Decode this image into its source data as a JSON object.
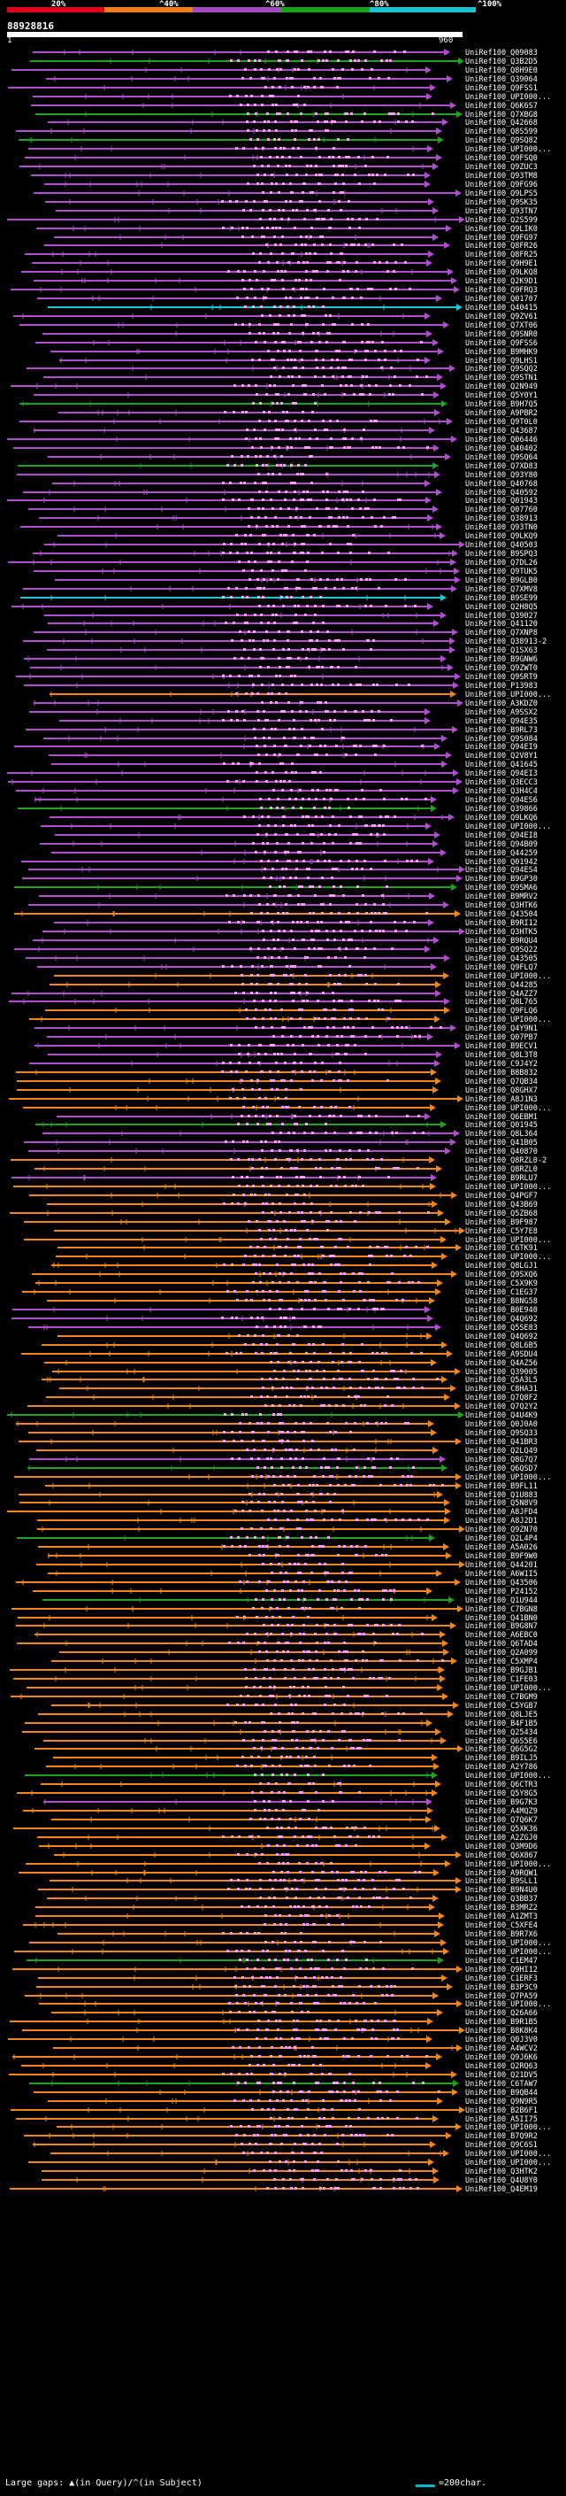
{
  "header": {
    "legend": [
      {
        "label": "20%",
        "color": "#e0001b"
      },
      {
        "label": "^40%",
        "color": "#ee7d1c"
      },
      {
        "label": "^60%",
        "color": "#a14cbe"
      },
      {
        "label": "^80%",
        "color": "#1aa31a"
      },
      {
        "label": "^100%",
        "color": "#1cc3cf"
      }
    ],
    "query_id": "88928816",
    "query_start": "1",
    "query_end": "960"
  },
  "colors": {
    "cyan": "#22c4d4",
    "green": "#1fa21f",
    "purple": "#b04ed0",
    "orange": "#f0861d",
    "pink": "#ff9cf8",
    "black": "#000000"
  },
  "hits": [
    {
      "label": "UniRef100_Q09083",
      "color": "purple"
    },
    {
      "label": "UniRef100_Q3B2D5",
      "color": "green"
    },
    {
      "label": "UniRef100_Q8H9E0",
      "color": "purple"
    },
    {
      "label": "UniRef100_Q39064",
      "color": "purple"
    },
    {
      "label": "UniRef100_Q9FSS1",
      "color": "purple"
    },
    {
      "label": "UniRef100_UPI000...",
      "color": "purple"
    },
    {
      "label": "UniRef100_Q6K6S7",
      "color": "purple"
    },
    {
      "label": "UniRef100_Q7XBG8",
      "color": "green"
    },
    {
      "label": "UniRef100_Q42668",
      "color": "purple"
    },
    {
      "label": "UniRef100_Q8S599",
      "color": "purple"
    },
    {
      "label": "UniRef100_Q9SQ82",
      "color": "green"
    },
    {
      "label": "UniRef100_UPI000...",
      "color": "purple"
    },
    {
      "label": "UniRef100_Q9FSQ0",
      "color": "purple"
    },
    {
      "label": "UniRef100_Q9ZUC3",
      "color": "purple"
    },
    {
      "label": "UniRef100_Q93TM8",
      "color": "purple"
    },
    {
      "label": "UniRef100_Q9FG96",
      "color": "purple"
    },
    {
      "label": "UniRef100_Q9LPS5",
      "color": "purple"
    },
    {
      "label": "UniRef100_Q9SK35",
      "color": "purple"
    },
    {
      "label": "UniRef100_Q93TN7",
      "color": "purple"
    },
    {
      "label": "UniRef100_Q2S599",
      "color": "purple"
    },
    {
      "label": "UniRef100_Q9LIK0",
      "color": "purple"
    },
    {
      "label": "UniRef100_Q9FG97",
      "color": "purple"
    },
    {
      "label": "UniRef100_Q8FR26",
      "color": "purple"
    },
    {
      "label": "UniRef100_Q8FR25",
      "color": "purple"
    },
    {
      "label": "UniRef100_Q9H9E1",
      "color": "purple"
    },
    {
      "label": "UniRef100_Q9LKQ8",
      "color": "purple"
    },
    {
      "label": "UniRef100_Q2K9D1",
      "color": "purple"
    },
    {
      "label": "UniRef100_Q9FRQ3",
      "color": "purple"
    },
    {
      "label": "UniRef100_Q01707",
      "color": "purple"
    },
    {
      "label": "UniRef100_Q40415",
      "color": "cyan"
    },
    {
      "label": "UniRef100_Q9ZV61",
      "color": "purple"
    },
    {
      "label": "UniRef100_Q7XT06",
      "color": "purple"
    },
    {
      "label": "UniRef100_Q9SNR0",
      "color": "purple"
    },
    {
      "label": "UniRef100_Q9FSS6",
      "color": "purple"
    },
    {
      "label": "UniRef100_B9MHK9",
      "color": "purple"
    },
    {
      "label": "UniRef100_Q9LHS1",
      "color": "purple"
    },
    {
      "label": "UniRef100_Q9SQQ2",
      "color": "purple"
    },
    {
      "label": "UniRef100_Q9STN1",
      "color": "purple"
    },
    {
      "label": "UniRef100_Q2N949",
      "color": "purple"
    },
    {
      "label": "UniRef100_Q5Y0Y1",
      "color": "purple"
    },
    {
      "label": "UniRef100_B9H7Q5",
      "color": "green"
    },
    {
      "label": "UniRef100_A9PBR2",
      "color": "purple"
    },
    {
      "label": "UniRef100_Q9T0L0",
      "color": "purple"
    },
    {
      "label": "UniRef100_Q43687",
      "color": "purple"
    },
    {
      "label": "UniRef100_Q06446",
      "color": "purple"
    },
    {
      "label": "UniRef100_Q40402",
      "color": "purple"
    },
    {
      "label": "UniRef100_Q9SQ64",
      "color": "purple"
    },
    {
      "label": "UniRef100_Q7XD83",
      "color": "green"
    },
    {
      "label": "UniRef100_Q93Y80",
      "color": "purple"
    },
    {
      "label": "UniRef100_Q40768",
      "color": "purple"
    },
    {
      "label": "UniRef100_Q40592",
      "color": "purple"
    },
    {
      "label": "UniRef100_Q01943",
      "color": "purple"
    },
    {
      "label": "UniRef100_Q07760",
      "color": "purple"
    },
    {
      "label": "UniRef100_Q38913",
      "color": "purple"
    },
    {
      "label": "UniRef100_Q93TN0",
      "color": "purple"
    },
    {
      "label": "UniRef100_Q9LKQ9",
      "color": "purple"
    },
    {
      "label": "UniRef100_Q40503",
      "color": "purple"
    },
    {
      "label": "UniRef100_B9SPQ3",
      "color": "purple"
    },
    {
      "label": "UniRef100_Q7DL26",
      "color": "purple"
    },
    {
      "label": "UniRef100_Q9TUK5",
      "color": "purple"
    },
    {
      "label": "UniRef100_B9GLB0",
      "color": "purple"
    },
    {
      "label": "UniRef100_Q7XMV8",
      "color": "purple"
    },
    {
      "label": "UniRef100_B9SE99",
      "color": "cyan"
    },
    {
      "label": "UniRef100_Q2H8Q5",
      "color": "purple"
    },
    {
      "label": "UniRef100_Q39027",
      "color": "purple"
    },
    {
      "label": "UniRef100_Q41120",
      "color": "purple"
    },
    {
      "label": "UniRef100_Q7XNP8",
      "color": "purple"
    },
    {
      "label": "UniRef100_Q38913-2",
      "color": "purple"
    },
    {
      "label": "UniRef100_Q1SX63",
      "color": "purple"
    },
    {
      "label": "UniRef100_B9GNW6",
      "color": "purple"
    },
    {
      "label": "UniRef100_Q9ZWT0",
      "color": "purple"
    },
    {
      "label": "UniRef100_Q9SRT9",
      "color": "purple"
    },
    {
      "label": "UniRef100_P13983",
      "color": "purple"
    },
    {
      "label": "UniRef100_UPI000...",
      "color": "orange"
    },
    {
      "label": "UniRef100_A3KDZ0",
      "color": "purple"
    },
    {
      "label": "UniRef100_A9SSX2",
      "color": "purple"
    },
    {
      "label": "UniRef100_Q94E35",
      "color": "purple"
    },
    {
      "label": "UniRef100_B9RL73",
      "color": "purple"
    },
    {
      "label": "UniRef100_Q9S084",
      "color": "purple"
    },
    {
      "label": "UniRef100_Q94EI9",
      "color": "purple"
    },
    {
      "label": "UniRef100_Q2V8Y1",
      "color": "purple"
    },
    {
      "label": "UniRef100_Q41645",
      "color": "purple"
    },
    {
      "label": "UniRef100_Q94EI3",
      "color": "purple"
    },
    {
      "label": "UniRef100_Q3ECC3",
      "color": "purple"
    },
    {
      "label": "UniRef100_Q3H4C4",
      "color": "purple"
    },
    {
      "label": "UniRef100_Q94ES6",
      "color": "purple"
    },
    {
      "label": "UniRef100_Q39866",
      "color": "green"
    },
    {
      "label": "UniRef100_Q9LKQ6",
      "color": "purple"
    },
    {
      "label": "UniRef100_UPI000...",
      "color": "purple"
    },
    {
      "label": "UniRef100_Q94EI8",
      "color": "purple"
    },
    {
      "label": "UniRef100_Q94B09",
      "color": "purple"
    },
    {
      "label": "UniRef100_Q44259",
      "color": "purple"
    },
    {
      "label": "UniRef100_Q01942",
      "color": "purple"
    },
    {
      "label": "UniRef100_Q94ES4",
      "color": "purple"
    },
    {
      "label": "UniRef100_B9GP30",
      "color": "purple"
    },
    {
      "label": "UniRef100_Q9SMA6",
      "color": "green"
    },
    {
      "label": "UniRef100_B9MRV2",
      "color": "purple"
    },
    {
      "label": "UniRef100_Q3HTK6",
      "color": "purple"
    },
    {
      "label": "UniRef100_Q43504",
      "color": "orange"
    },
    {
      "label": "UniRef100_B9RI12",
      "color": "purple"
    },
    {
      "label": "UniRef100_Q3HTK5",
      "color": "purple"
    },
    {
      "label": "UniRef100_B9RQU4",
      "color": "purple"
    },
    {
      "label": "UniRef100_Q9SQ22",
      "color": "purple"
    },
    {
      "label": "UniRef100_Q43505",
      "color": "purple"
    },
    {
      "label": "UniRef100_Q9FLQ7",
      "color": "purple"
    },
    {
      "label": "UniRef100_UPI000...",
      "color": "orange"
    },
    {
      "label": "UniRef100_Q44285",
      "color": "orange"
    },
    {
      "label": "UniRef100_Q4AZZ7",
      "color": "purple"
    },
    {
      "label": "UniRef100_Q8L765",
      "color": "purple"
    },
    {
      "label": "UniRef100_Q9FLQ6",
      "color": "orange"
    },
    {
      "label": "UniRef100_UPI000...",
      "color": "orange"
    },
    {
      "label": "UniRef100_Q4Y9N1",
      "color": "purple"
    },
    {
      "label": "UniRef100_Q07PB7",
      "color": "purple"
    },
    {
      "label": "UniRef100_B9ECV1",
      "color": "purple"
    },
    {
      "label": "UniRef100_Q8L3T8",
      "color": "purple"
    },
    {
      "label": "UniRef100_C9J4Y2",
      "color": "purple"
    },
    {
      "label": "UniRef100_B8B832",
      "color": "orange"
    },
    {
      "label": "UniRef100_Q7QB34",
      "color": "orange"
    },
    {
      "label": "UniRef100_Q8GHX7",
      "color": "orange"
    },
    {
      "label": "UniRef100_A8J1N3",
      "color": "orange"
    },
    {
      "label": "UniRef100_UPI000...",
      "color": "orange"
    },
    {
      "label": "UniRef100_Q6EBM1",
      "color": "purple"
    },
    {
      "label": "UniRef100_Q01945",
      "color": "green"
    },
    {
      "label": "UniRef100_Q8L364",
      "color": "purple"
    },
    {
      "label": "UniRef100_Q41B05",
      "color": "purple"
    },
    {
      "label": "UniRef100_Q40870",
      "color": "purple"
    },
    {
      "label": "UniRef100_Q8RZL0-2",
      "color": "orange"
    },
    {
      "label": "UniRef100_Q8RZL0",
      "color": "orange"
    },
    {
      "label": "UniRef100_B9RLU7",
      "color": "purple"
    },
    {
      "label": "UniRef100_UPI000...",
      "color": "orange"
    },
    {
      "label": "UniRef100_Q4PGF7",
      "color": "orange"
    },
    {
      "label": "UniRef100_Q43B69",
      "color": "orange"
    },
    {
      "label": "UniRef100_Q5ZB68",
      "color": "orange"
    },
    {
      "label": "UniRef100_B9F987",
      "color": "orange"
    },
    {
      "label": "UniRef100_C5Y7E8",
      "color": "orange"
    },
    {
      "label": "UniRef100_UPI000...",
      "color": "orange"
    },
    {
      "label": "UniRef100_C6TK91",
      "color": "orange"
    },
    {
      "label": "UniRef100_UPI000...",
      "color": "orange"
    },
    {
      "label": "UniRef100_Q8LGJ1",
      "color": "orange"
    },
    {
      "label": "UniRef100_Q9SXQ6",
      "color": "orange"
    },
    {
      "label": "UniRef100_C5X9K9",
      "color": "orange"
    },
    {
      "label": "UniRef100_C1EG37",
      "color": "orange"
    },
    {
      "label": "UniRef100_B8NG58",
      "color": "orange"
    },
    {
      "label": "UniRef100_B0E940",
      "color": "purple"
    },
    {
      "label": "UniRef100_Q4Q692",
      "color": "purple"
    },
    {
      "label": "UniRef100_Q5SE83",
      "color": "purple"
    },
    {
      "label": "UniRef100_Q4Q692",
      "color": "orange"
    },
    {
      "label": "UniRef100_Q8L6B5",
      "color": "orange"
    },
    {
      "label": "UniRef100_A9SDU4",
      "color": "orange"
    },
    {
      "label": "UniRef100_Q4AZ56",
      "color": "orange"
    },
    {
      "label": "UniRef100_Q39005",
      "color": "orange"
    },
    {
      "label": "UniRef100_Q5A3L5",
      "color": "orange"
    },
    {
      "label": "UniRef100_C8HA31",
      "color": "orange"
    },
    {
      "label": "UniRef100_Q7Q8F2",
      "color": "orange"
    },
    {
      "label": "UniRef100_Q7Q2Y2",
      "color": "orange"
    },
    {
      "label": "UniRef100_Q4U4K9",
      "color": "green"
    },
    {
      "label": "UniRef100_Q0J0A0",
      "color": "orange"
    },
    {
      "label": "UniRef100_Q9SQ33",
      "color": "orange"
    },
    {
      "label": "UniRef100_Q41BR3",
      "color": "orange"
    },
    {
      "label": "UniRef100_Q2LQ49",
      "color": "orange"
    },
    {
      "label": "UniRef100_Q8G7Q7",
      "color": "purple"
    },
    {
      "label": "UniRef100_Q6QSD7",
      "color": "green"
    },
    {
      "label": "UniRef100_UPI000...",
      "color": "orange"
    },
    {
      "label": "UniRef100_B9FL11",
      "color": "orange"
    },
    {
      "label": "UniRef100_Q1U883",
      "color": "orange"
    },
    {
      "label": "UniRef100_Q5N8V9",
      "color": "orange"
    },
    {
      "label": "UniRef100_A8JFD4",
      "color": "orange"
    },
    {
      "label": "UniRef100_A8J2D1",
      "color": "orange"
    },
    {
      "label": "UniRef100_Q9ZN70",
      "color": "orange"
    },
    {
      "label": "UniRef100_Q2L4P4",
      "color": "green"
    },
    {
      "label": "UniRef100_A5A026",
      "color": "orange"
    },
    {
      "label": "UniRef100_B9F9W0",
      "color": "orange"
    },
    {
      "label": "UniRef100_Q44201",
      "color": "orange"
    },
    {
      "label": "UniRef100_A6W1I5",
      "color": "orange"
    },
    {
      "label": "UniRef100_Q43506",
      "color": "orange"
    },
    {
      "label": "UniRef100_P24152",
      "color": "orange"
    },
    {
      "label": "UniRef100_Q1U944",
      "color": "green"
    },
    {
      "label": "UniRef100_C7BGN8",
      "color": "orange"
    },
    {
      "label": "UniRef100_Q41BN0",
      "color": "orange"
    },
    {
      "label": "UniRef100_B9G8N7",
      "color": "orange"
    },
    {
      "label": "UniRef100_A6EBC0",
      "color": "orange"
    },
    {
      "label": "UniRef100_Q6TAD4",
      "color": "orange"
    },
    {
      "label": "UniRef100_Q2A099",
      "color": "orange"
    },
    {
      "label": "UniRef100_C5XMP4",
      "color": "orange"
    },
    {
      "label": "UniRef100_B9GJB1",
      "color": "orange"
    },
    {
      "label": "UniRef100_C1FE03",
      "color": "orange"
    },
    {
      "label": "UniRef100_UPI000...",
      "color": "orange"
    },
    {
      "label": "UniRef100_C7BGM9",
      "color": "orange"
    },
    {
      "label": "UniRef100_C5YGB7",
      "color": "orange"
    },
    {
      "label": "UniRef100_Q8LJE5",
      "color": "orange"
    },
    {
      "label": "UniRef100_B4F1B5",
      "color": "orange"
    },
    {
      "label": "UniRef100_Q25434",
      "color": "orange"
    },
    {
      "label": "UniRef100_Q6S5E6",
      "color": "orange"
    },
    {
      "label": "UniRef100_Q6G5G2",
      "color": "orange"
    },
    {
      "label": "UniRef100_B9ILJ5",
      "color": "orange"
    },
    {
      "label": "UniRef100_A2Y786",
      "color": "orange"
    },
    {
      "label": "UniRef100_UPI000...",
      "color": "green"
    },
    {
      "label": "UniRef100_Q6CTR3",
      "color": "orange"
    },
    {
      "label": "UniRef100_Q5Y8G5",
      "color": "orange"
    },
    {
      "label": "UniRef100_B9G7K3",
      "color": "purple"
    },
    {
      "label": "UniRef100_A4MQZ9",
      "color": "orange"
    },
    {
      "label": "UniRef100_Q7Q6K7",
      "color": "orange"
    },
    {
      "label": "UniRef100_Q5XK36",
      "color": "orange"
    },
    {
      "label": "UniRef100_A2ZGJ0",
      "color": "orange"
    },
    {
      "label": "UniRef100_Q3M9D6",
      "color": "orange"
    },
    {
      "label": "UniRef100_Q6X867",
      "color": "orange"
    },
    {
      "label": "UniRef100_UPI000...",
      "color": "orange"
    },
    {
      "label": "UniRef100_A9RQW1",
      "color": "orange"
    },
    {
      "label": "UniRef100_B9SLL1",
      "color": "orange"
    },
    {
      "label": "UniRef100_B9N4U0",
      "color": "orange"
    },
    {
      "label": "UniRef100_Q3BB37",
      "color": "orange"
    },
    {
      "label": "UniRef100_B3MRZ2",
      "color": "orange"
    },
    {
      "label": "UniRef100_A1ZMT3",
      "color": "orange"
    },
    {
      "label": "UniRef100_C5XFE4",
      "color": "orange"
    },
    {
      "label": "UniRef100_B9R7X6",
      "color": "orange"
    },
    {
      "label": "UniRef100_UPI000...",
      "color": "orange"
    },
    {
      "label": "UniRef100_UPI000...",
      "color": "orange"
    },
    {
      "label": "UniRef100_C1EM47",
      "color": "green"
    },
    {
      "label": "UniRef100_Q9HI12",
      "color": "orange"
    },
    {
      "label": "UniRef100_C1ERF3",
      "color": "orange"
    },
    {
      "label": "UniRef100_B3P3C9",
      "color": "orange"
    },
    {
      "label": "UniRef100_Q7PA59",
      "color": "orange"
    },
    {
      "label": "UniRef100_UPI000...",
      "color": "orange"
    },
    {
      "label": "UniRef100_Q26A66",
      "color": "orange"
    },
    {
      "label": "UniRef100_B9R1B5",
      "color": "orange"
    },
    {
      "label": "UniRef100_B8K8K4",
      "color": "orange"
    },
    {
      "label": "UniRef100_Q0J3V0",
      "color": "orange"
    },
    {
      "label": "UniRef100_A4WCV2",
      "color": "orange"
    },
    {
      "label": "UniRef100_Q9J6K6",
      "color": "orange"
    },
    {
      "label": "UniRef100_Q2RQ63",
      "color": "orange"
    },
    {
      "label": "UniRef100_Q21DV5",
      "color": "orange"
    },
    {
      "label": "UniRef100_C6TAW7",
      "color": "green"
    },
    {
      "label": "UniRef100_B9QB44",
      "color": "orange"
    },
    {
      "label": "UniRef100_Q9N9R5",
      "color": "orange"
    },
    {
      "label": "UniRef100_B2B6F1",
      "color": "orange"
    },
    {
      "label": "UniRef100_A5II75",
      "color": "orange"
    },
    {
      "label": "UniRef100_UPI000...",
      "color": "orange"
    },
    {
      "label": "UniRef100_B7Q9R2",
      "color": "orange"
    },
    {
      "label": "UniRef100_Q9C6S1",
      "color": "orange"
    },
    {
      "label": "UniRef100_UPI000...",
      "color": "orange"
    },
    {
      "label": "UniRef100_UPI000...",
      "color": "orange"
    },
    {
      "label": "UniRef100_Q3HTK2",
      "color": "orange"
    },
    {
      "label": "UniRef100_Q4U8Y0",
      "color": "orange"
    },
    {
      "label": "UniRef100_Q4EM19",
      "color": "orange"
    }
  ],
  "footer": {
    "large_gaps_label": "Large gaps: ",
    "large_gaps_symbols": "▲(in Query)/^(in Subject)",
    "scale_label": "=200char."
  }
}
